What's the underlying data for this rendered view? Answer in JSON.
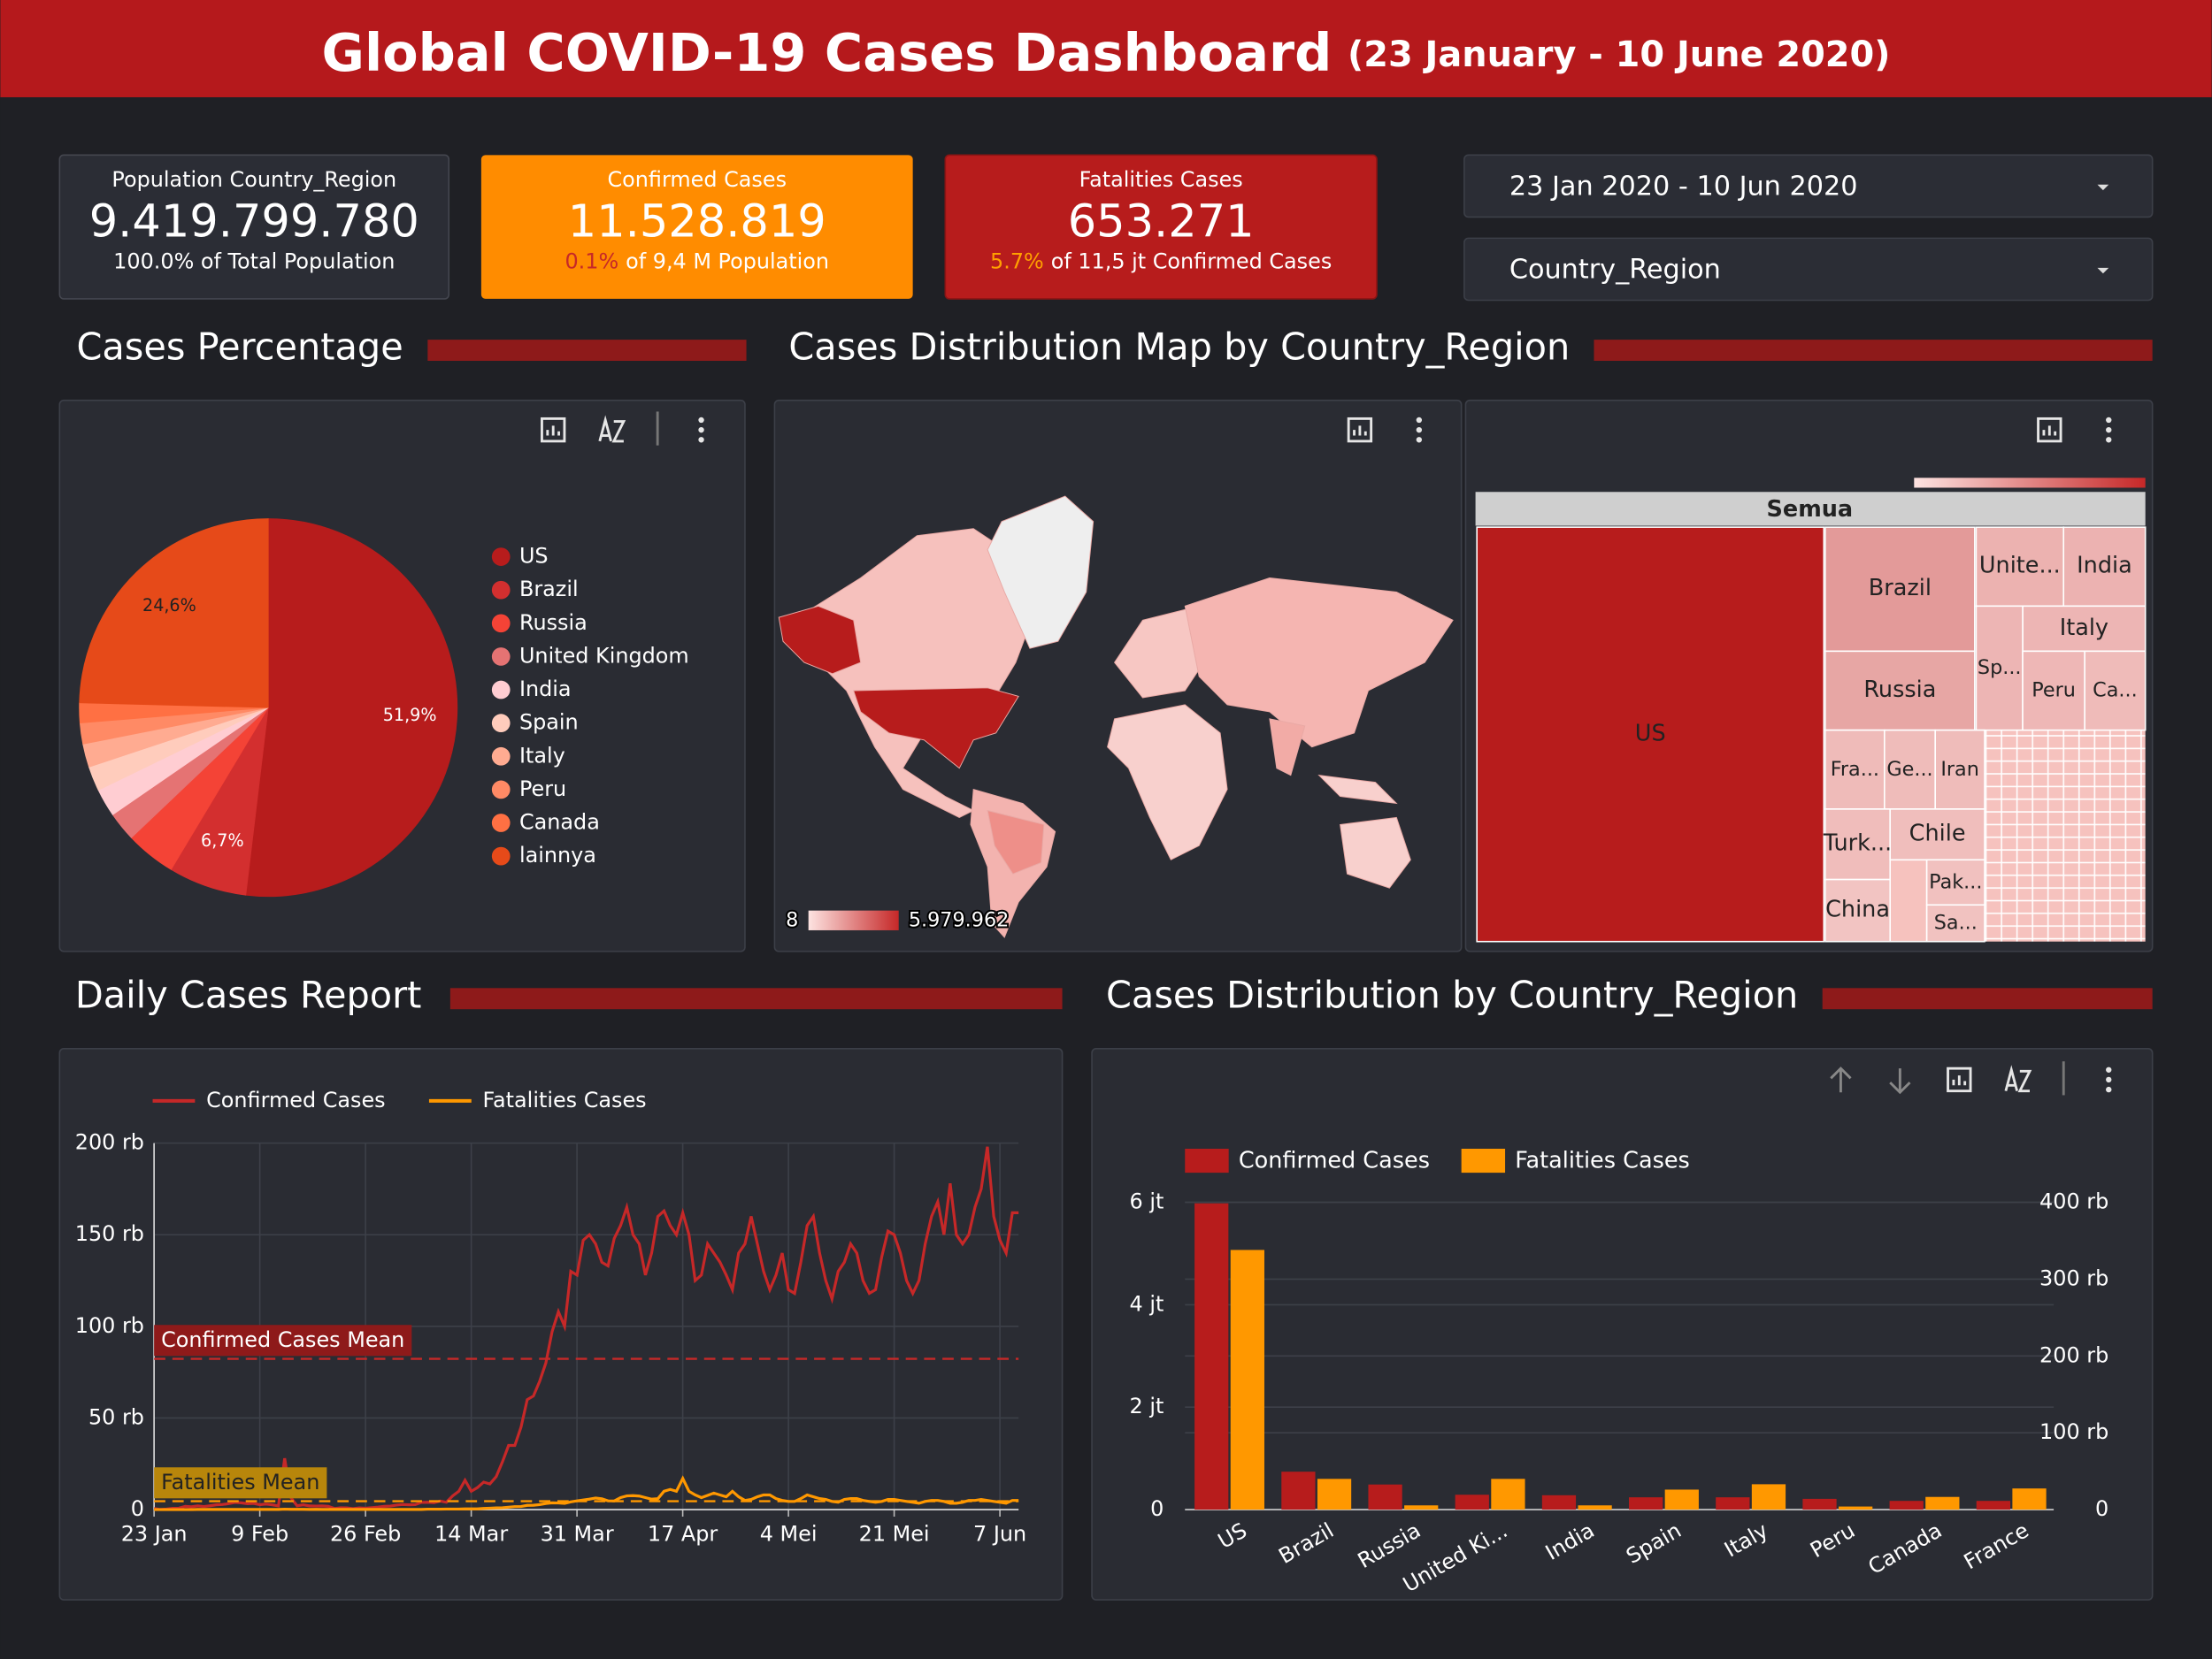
{
  "header": {
    "title": "Global COVID-19 Cases Dashboard",
    "subtitle": "(23 January - 10 June 2020)"
  },
  "kpis": [
    {
      "title": "Population Country_Region",
      "value": "9.419.799.780",
      "note": "100.0% of Total Population"
    },
    {
      "title": "Confirmed Cases",
      "value": "11.528.819",
      "highlight": "0.1%",
      "note": "of 9,4 M Population"
    },
    {
      "title": "Fatalities Cases",
      "value": "653.271",
      "highlight": "5.7%",
      "note": "of 11,5 jt Confirmed Cases"
    }
  ],
  "filters": [
    "23 Jan 2020 - 10 Jun 2020",
    "Country_Region"
  ],
  "sections": [
    "Cases Percentage",
    "Cases Distribution Map by Country_Region",
    "Daily Cases Report",
    "Cases Distribution by Country_Region"
  ],
  "chart_data": [
    {
      "type": "pie",
      "categories": [
        "US",
        "Brazil",
        "Russia",
        "United Kingdom",
        "India",
        "Spain",
        "Italy",
        "Peru",
        "Canada",
        "lainnya"
      ],
      "values": [
        51.9,
        6.7,
        4.3,
        2.5,
        2.4,
        2.1,
        2.0,
        1.8,
        1.7,
        24.6
      ],
      "value_labels": [
        "51,9%",
        "6,7%",
        null,
        null,
        null,
        null,
        null,
        null,
        null,
        "24,6%"
      ],
      "colors": [
        "#b71c1c",
        "#d32f2f",
        "#f44336",
        "#e57373",
        "#ffcdd2",
        "#ffccbc",
        "#ffab91",
        "#ff8a65",
        "#ff7043",
        "#e64a19"
      ]
    },
    {
      "type": "map",
      "legend_min": 8,
      "legend_max": {
        "value": 5979962,
        "label": "5.979.962"
      },
      "colors": [
        "#fde3e1",
        "#c62828"
      ]
    },
    {
      "type": "treemap",
      "root": "Semua",
      "colors": [
        "#fde3e1",
        "#b71c1c"
      ],
      "tiles": [
        {
          "label": "US",
          "value": 5979962
        },
        {
          "label": "Brazil",
          "value": 740000
        },
        {
          "label": "Russia",
          "value": 490000
        },
        {
          "label": "Unite...",
          "value": 290000
        },
        {
          "label": "India",
          "value": 280000
        },
        {
          "label": "Italy",
          "value": 240000
        },
        {
          "label": "Sp...",
          "value": 240000
        },
        {
          "label": "Peru",
          "value": 210000
        },
        {
          "label": "Ca...",
          "value": 170000
        },
        {
          "label": "Fra...",
          "value": 170000
        },
        {
          "label": "Ge...",
          "value": 160000
        },
        {
          "label": "Iran",
          "value": 160000
        },
        {
          "label": "Turk...",
          "value": 150000
        },
        {
          "label": "Chile",
          "value": 140000
        },
        {
          "label": "Pak...",
          "value": 110000
        },
        {
          "label": "China",
          "value": 84000
        },
        {
          "label": "Sa...",
          "value": 100000
        }
      ]
    },
    {
      "type": "line",
      "categories": [
        "23 Jan",
        null,
        null,
        null,
        null,
        null,
        null,
        null,
        null,
        null,
        null,
        null,
        null,
        null,
        null,
        null,
        null,
        "9 Feb",
        null,
        null,
        null,
        null,
        null,
        null,
        null,
        null,
        null,
        null,
        null,
        null,
        null,
        null,
        null,
        null,
        "26 Feb",
        null,
        null,
        null,
        null,
        null,
        null,
        null,
        null,
        null,
        null,
        null,
        null,
        null,
        null,
        null,
        null,
        "14 Mar",
        null,
        null,
        null,
        null,
        null,
        null,
        null,
        null,
        null,
        null,
        null,
        null,
        null,
        null,
        null,
        null,
        "31 Mar",
        null,
        null,
        null,
        null,
        null,
        null,
        null,
        null,
        null,
        null,
        null,
        null,
        null,
        null,
        null,
        null,
        "17 Apr",
        null,
        null,
        null,
        null,
        null,
        null,
        null,
        null,
        null,
        null,
        null,
        null,
        null,
        null,
        null,
        null,
        "4 Mei",
        null,
        null,
        null,
        null,
        null,
        null,
        null,
        null,
        null,
        null,
        null,
        null,
        null,
        null,
        null,
        null,
        "21 Mei",
        null,
        null,
        null,
        null,
        null,
        null,
        null,
        null,
        null,
        null,
        null,
        null,
        null,
        null,
        null,
        null,
        "7 Jun",
        null,
        null,
        null
      ],
      "series": [
        {
          "name": "Confirmed Cases",
          "color": "#c62828",
          "values": [
            0.6,
            0.1,
            0.3,
            0.7,
            0.8,
            1.8,
            1.5,
            2.0,
            1.7,
            2.1,
            2.6,
            2.8,
            3.2,
            3.9,
            3.7,
            3.2,
            3.4,
            2.7,
            3.0,
            2.6,
            2.0,
            28,
            6.5,
            2.1,
            2.6,
            2.0,
            1.9,
            2.0,
            1.8,
            0.6,
            1.0,
            0.9,
            0.5,
            0.9,
            0.8,
            1.1,
            1.4,
            1.8,
            1.9,
            2.5,
            2.8,
            2.6,
            2.7,
            3.9,
            4.0,
            3.8,
            4.7,
            4.0,
            7.5,
            10.0,
            16.0,
            10,
            12,
            15,
            14,
            18,
            26,
            35,
            35,
            45,
            60,
            62,
            70,
            80,
            97,
            108,
            100,
            130,
            128,
            147,
            150,
            145,
            135,
            133,
            148,
            155,
            165,
            150,
            145,
            128,
            140,
            160,
            163,
            155,
            150,
            162,
            150,
            125,
            128,
            145,
            140,
            135,
            128,
            120,
            140,
            145,
            160,
            145,
            130,
            120,
            128,
            140,
            120,
            118,
            135,
            155,
            160,
            140,
            125,
            115,
            130,
            135,
            145,
            140,
            125,
            118,
            120,
            138,
            152,
            150,
            140,
            125,
            118,
            125,
            145,
            160,
            168,
            150,
            178,
            150,
            145,
            150,
            165,
            175,
            198,
            160,
            147,
            140,
            162,
            162
          ]
        },
        {
          "name": "Fatalities Cases",
          "color": "#ff9800",
          "values": [
            0.02,
            0.01,
            0.02,
            0.02,
            0.03,
            0.03,
            0.03,
            0.04,
            0.04,
            0.05,
            0.06,
            0.06,
            0.07,
            0.07,
            0.08,
            0.08,
            0.09,
            0.1,
            0.1,
            0.1,
            0.1,
            0.25,
            0.14,
            0.14,
            0.14,
            0.1,
            0.15,
            0.1,
            0.1,
            0.07,
            0.05,
            0.05,
            0.05,
            0.1,
            0.1,
            0.07,
            0.07,
            0.06,
            0.07,
            0.07,
            0.1,
            0.1,
            0.1,
            0.1,
            0.2,
            0.2,
            0.2,
            0.3,
            0.3,
            0.3,
            0.4,
            0.4,
            0.4,
            0.6,
            0.8,
            0.9,
            1.0,
            1.3,
            1.6,
            1.7,
            2.3,
            2.4,
            2.7,
            3.3,
            3.7,
            3.6,
            3.4,
            4.2,
            4.8,
            5.2,
            5.7,
            6.3,
            5.9,
            4.8,
            4.7,
            6.5,
            7.5,
            7.6,
            7.4,
            6.5,
            5.7,
            5.9,
            10,
            11,
            10,
            17,
            10,
            8,
            6.5,
            7.8,
            9,
            8,
            7,
            10,
            7,
            5,
            5.5,
            7,
            8,
            8,
            6,
            5,
            4.5,
            4.5,
            6,
            8,
            7,
            6,
            5.5,
            4.5,
            4,
            5.5,
            6,
            6,
            5,
            4.5,
            4,
            4.5,
            5.5,
            5.5,
            5,
            4.5,
            4,
            3.5,
            4.5,
            5,
            5,
            4.5,
            3.5,
            3.5,
            4,
            5,
            5,
            5.5,
            5,
            4.5,
            4,
            3.5,
            5,
            5
          ]
        }
      ],
      "ylim": [
        0,
        200
      ],
      "yticks": [
        0,
        {
          "value": 50,
          "label": "50 rb"
        },
        {
          "value": 100,
          "label": "100 rb"
        },
        {
          "value": 150,
          "label": "150 rb"
        },
        {
          "value": 200,
          "label": "200 rb"
        }
      ],
      "annotations": [
        {
          "label": "Confirmed Cases Mean",
          "value": 82.3,
          "color": "#8e1a1a"
        },
        {
          "label": "Fatalities Mean",
          "value": 4.6,
          "color": "#b8860b"
        }
      ],
      "grid": true
    },
    {
      "type": "bar",
      "categories": [
        "US",
        "Brazil",
        "Russia",
        "United Ki...",
        "India",
        "Spain",
        "Italy",
        "Peru",
        "Canada",
        "France"
      ],
      "series": [
        {
          "name": "Confirmed Cases",
          "color": "#b71c1c",
          "values": [
            5.98,
            0.74,
            0.49,
            0.29,
            0.28,
            0.24,
            0.24,
            0.21,
            0.17,
            0.17
          ]
        },
        {
          "name": "Fatalities Cases",
          "color": "#ff9800",
          "axis": "y2",
          "values": [
            338,
            40,
            5.5,
            40,
            5.5,
            26,
            33,
            4,
            16.5,
            27.5
          ]
        }
      ],
      "ylim": [
        0,
        6
      ],
      "yticks": [
        0,
        {
          "value": 2,
          "label": "2 jt"
        },
        {
          "value": 4,
          "label": "4 jt"
        },
        {
          "value": 6,
          "label": "6 jt"
        }
      ],
      "y2lim": [
        0,
        400
      ],
      "y2ticks": [
        0,
        {
          "value": 100,
          "label": "100 rb"
        },
        {
          "value": 200,
          "label": "200 rb"
        },
        {
          "value": 300,
          "label": "300 rb"
        },
        {
          "value": 400,
          "label": "400 rb"
        }
      ],
      "grid": true
    }
  ]
}
